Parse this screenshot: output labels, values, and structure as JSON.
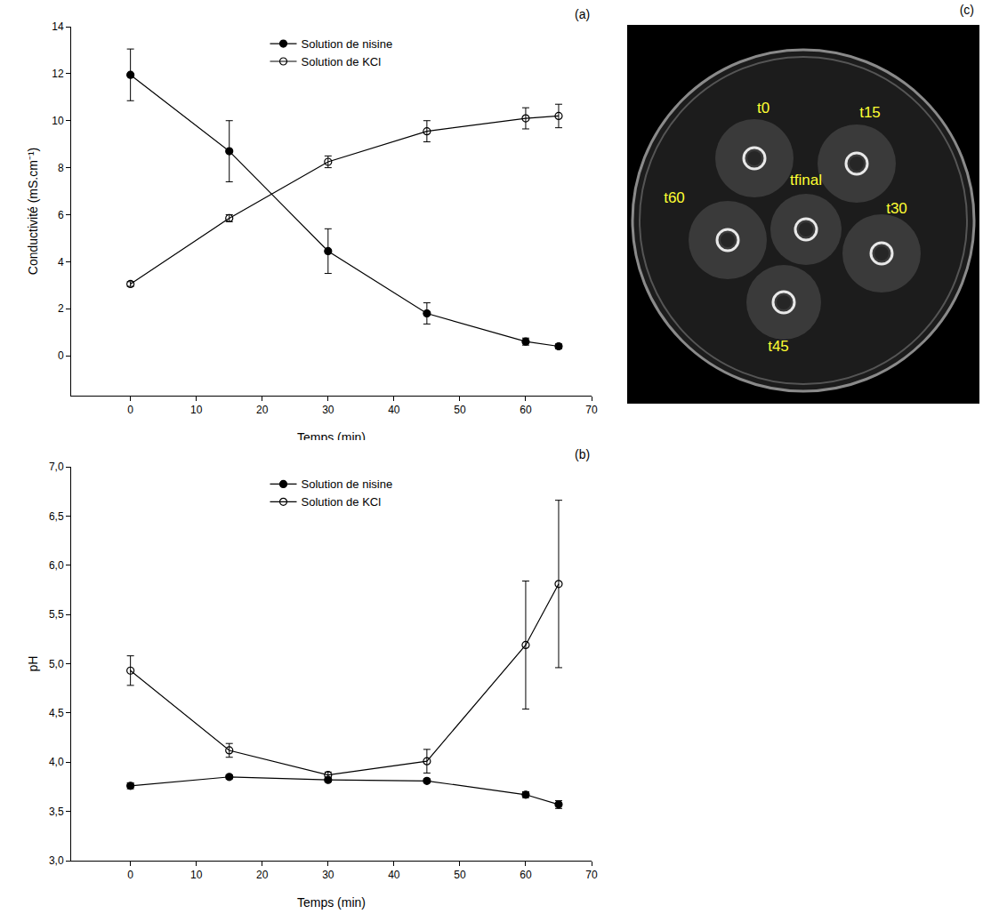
{
  "chart_data": [
    {
      "type": "line",
      "annotations": [
        "(a)"
      ],
      "x_label": "Temps (min)",
      "y_label": "Conductivité (mS.cm⁻¹)",
      "x": [
        0,
        15,
        30,
        45,
        60,
        65
      ],
      "series": [
        {
          "name": "Solution de nisine",
          "color": "#000000",
          "marker": "circle",
          "line_style": "solid",
          "values": [
            11.95,
            8.7,
            4.45,
            1.8,
            0.6,
            0.4
          ],
          "errors": [
            1.1,
            1.3,
            0.95,
            0.45,
            0.15,
            0.1
          ]
        },
        {
          "name": "Solution de KCl",
          "color": "#000000",
          "marker": "circle-open",
          "line_style": "solid",
          "values": [
            3.05,
            5.85,
            8.25,
            9.55,
            10.1,
            10.2
          ],
          "errors": [
            0.1,
            0.15,
            0.25,
            0.45,
            0.45,
            0.5
          ]
        }
      ],
      "xlim": [
        -9,
        70
      ],
      "xticks": [
        0,
        10,
        20,
        30,
        40,
        50,
        60,
        70
      ],
      "ylim": [
        -1.7,
        14
      ],
      "yticks": [
        0,
        2,
        4,
        6,
        8,
        10,
        12,
        14
      ],
      "legend": "top",
      "grid": false
    },
    {
      "type": "line",
      "annotations": [
        "(b)"
      ],
      "x_label": "Temps (min)",
      "y_label": "pH",
      "x": [
        0,
        15,
        30,
        45,
        60,
        65
      ],
      "series": [
        {
          "name": "Solution de nisine",
          "color": "#000000",
          "marker": "circle",
          "line_style": "solid",
          "values": [
            3.76,
            3.85,
            3.82,
            3.81,
            3.67,
            3.57
          ],
          "errors": [
            0.03,
            0.02,
            0.02,
            0.02,
            0.03,
            0.04
          ]
        },
        {
          "name": "Solution de KCl",
          "color": "#000000",
          "marker": "circle-open",
          "line_style": "solid",
          "values": [
            4.93,
            4.12,
            3.87,
            4.01,
            5.19,
            5.81
          ],
          "errors": [
            0.15,
            0.07,
            0.03,
            0.12,
            0.65,
            0.85
          ]
        }
      ],
      "xlim": [
        -9,
        70
      ],
      "xticks": [
        0,
        10,
        20,
        30,
        40,
        50,
        60,
        70
      ],
      "ylim": [
        3.0,
        7.0
      ],
      "yticks": [
        {
          "value": 3.0,
          "label": "3,0"
        },
        {
          "value": 3.5,
          "label": "3,5"
        },
        {
          "value": 4.0,
          "label": "4,0"
        },
        {
          "value": 4.5,
          "label": "4,5"
        },
        {
          "value": 5.0,
          "label": "5,0"
        },
        {
          "value": 5.5,
          "label": "5,5"
        },
        {
          "value": 6.0,
          "label": "6,0"
        },
        {
          "value": 6.5,
          "label": "6,5"
        },
        {
          "value": 7.0,
          "label": "7,0"
        }
      ],
      "legend": "top",
      "grid": false
    }
  ],
  "photo": {
    "panel": "(c)",
    "labels": [
      "t0",
      "t15",
      "t30",
      "t45",
      "t60",
      "tfinal"
    ],
    "color": "#ffff33"
  }
}
